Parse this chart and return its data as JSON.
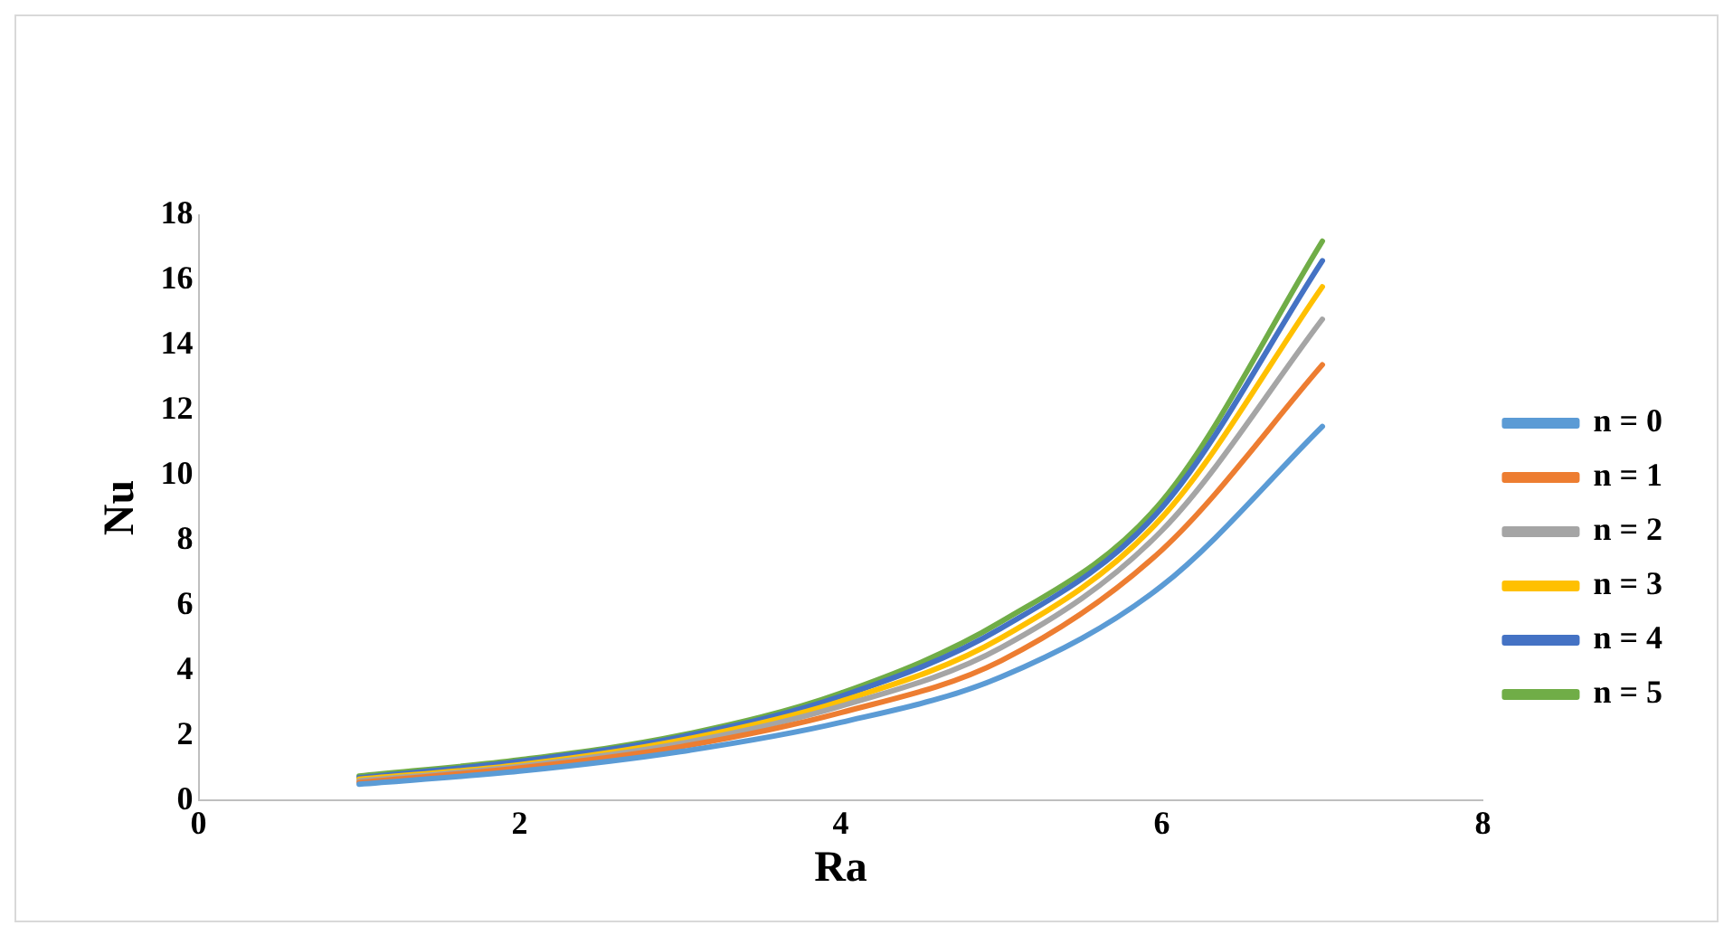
{
  "chart_data": {
    "type": "line",
    "xlabel": "Ra",
    "ylabel": "Nu",
    "x": [
      1,
      2,
      3,
      4,
      5,
      6,
      7
    ],
    "xlim": [
      0,
      8
    ],
    "xticks": [
      0,
      2,
      4,
      6,
      8
    ],
    "ylim": [
      0,
      18
    ],
    "yticks": [
      0,
      2,
      4,
      6,
      8,
      10,
      12,
      14,
      16,
      18
    ],
    "grid": false,
    "legend": "right",
    "marker": "none",
    "line_style": "solid",
    "series": [
      {
        "name": "n = 0",
        "color": "#5b9bd5",
        "values": [
          0.5,
          0.9,
          1.5,
          2.4,
          3.8,
          6.6,
          11.5
        ]
      },
      {
        "name": "n = 1",
        "color": "#ed7d31",
        "values": [
          0.55,
          1.0,
          1.65,
          2.7,
          4.3,
          7.7,
          13.4
        ]
      },
      {
        "name": "n = 2",
        "color": "#a5a5a5",
        "values": [
          0.6,
          1.05,
          1.75,
          2.9,
          4.7,
          8.3,
          14.8
        ]
      },
      {
        "name": "n = 3",
        "color": "#ffc000",
        "values": [
          0.65,
          1.1,
          1.85,
          3.05,
          5.0,
          8.7,
          15.8
        ]
      },
      {
        "name": "n = 4",
        "color": "#4472c4",
        "values": [
          0.7,
          1.2,
          1.95,
          3.2,
          5.3,
          9.0,
          16.6
        ]
      },
      {
        "name": "n = 5",
        "color": "#70ad47",
        "values": [
          0.75,
          1.25,
          2.0,
          3.3,
          5.5,
          9.2,
          17.2
        ]
      }
    ]
  }
}
